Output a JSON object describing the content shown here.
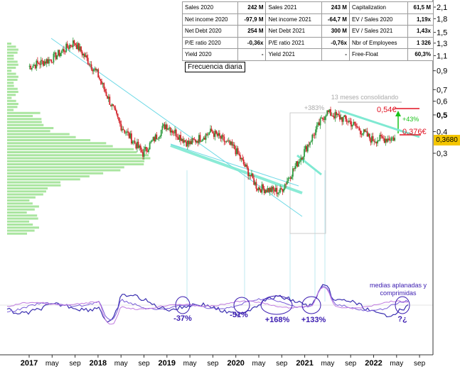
{
  "colors": {
    "up": "#2f9b3f",
    "down": "#d2232a",
    "trendline": "#6fd9e6",
    "channel": "#7fe9d2",
    "volume_profile": "#9be08f",
    "oscillator": "#3a2fb0",
    "annotation_red": "#e01020",
    "annotation_green": "#1ac21a",
    "annotation_gray": "#aaaaaa",
    "annotation_purple": "#3a1bb0",
    "price_box": "#f5c600"
  },
  "table": {
    "rows": [
      [
        {
          "label": "Sales 2020",
          "value": "242 M"
        },
        {
          "label": "Sales 2021",
          "value": "243 M"
        },
        {
          "label": "Capitalization",
          "value": "61,5 M"
        }
      ],
      [
        {
          "label": "Net income 2020",
          "value": "-97,9 M"
        },
        {
          "label": "Net income 2021",
          "value": "-64,7 M"
        },
        {
          "label": "EV / Sales 2020",
          "value": "1,19x"
        }
      ],
      [
        {
          "label": "Net Debt 2020",
          "value": "254 M"
        },
        {
          "label": "Net Debt 2021",
          "value": "300 M"
        },
        {
          "label": "EV / Sales 2021",
          "value": "1,43x"
        }
      ],
      [
        {
          "label": "P/E ratio 2020",
          "value": "-0,36x"
        },
        {
          "label": "P/E ratio 2021",
          "value": "-0,76x"
        },
        {
          "label": "Nbr of Employees",
          "value": "1 326"
        }
      ],
      [
        {
          "label": "Yield 2020",
          "value": "-"
        },
        {
          "label": "Yield 2021",
          "value": "-"
        },
        {
          "label": "Free-Float",
          "value": "60,3%"
        }
      ]
    ]
  },
  "frequency_label": "Frecuencia diaria",
  "last_price_label": "0,3680",
  "chart_data": {
    "type": "candlestick",
    "scale": "log",
    "x": [
      "2017-01",
      "2017-05",
      "2017-09",
      "2018-01",
      "2018-05",
      "2018-09",
      "2019-01",
      "2019-05",
      "2019-09",
      "2020-01",
      "2020-05",
      "2020-09",
      "2021-01",
      "2021-05",
      "2021-09",
      "2022-01",
      "2022-05"
    ],
    "close": [
      0.95,
      1.05,
      1.32,
      0.87,
      0.44,
      0.3,
      0.44,
      0.34,
      0.4,
      0.32,
      0.19,
      0.18,
      0.3,
      0.52,
      0.46,
      0.36,
      0.368
    ],
    "x_tick_labels": [
      "2017",
      "may",
      "sep",
      "2018",
      "may",
      "sep",
      "2019",
      "may",
      "sep",
      "2020",
      "may",
      "sep",
      "2021",
      "may",
      "sep",
      "2022",
      "may",
      "sep"
    ],
    "y_tick_labels": [
      {
        "value": 2.1,
        "label": "2,1"
      },
      {
        "value": 1.8,
        "label": "1,8"
      },
      {
        "value": 1.5,
        "label": "1,5"
      },
      {
        "value": 1.3,
        "label": "1,3"
      },
      {
        "value": 1.1,
        "label": "1,1"
      },
      {
        "value": 0.9,
        "label": "0,9"
      },
      {
        "value": 0.7,
        "label": "0,7"
      },
      {
        "value": 0.6,
        "label": "0,6"
      },
      {
        "value": 0.5,
        "label": "0,5"
      },
      {
        "value": 0.4,
        "label": "0,4"
      },
      {
        "value": 0.3,
        "label": "0,3"
      }
    ],
    "last_price": 0.368,
    "annotations": [
      {
        "text": "13 meses consolidando"
      },
      {
        "text": "+383%"
      },
      {
        "text": "0,54€"
      },
      {
        "text": "+43%"
      },
      {
        "text": "0,376€"
      },
      {
        "text": "medias aplanadas y comprimidas"
      },
      {
        "text": "-37%"
      },
      {
        "text": "-51%"
      },
      {
        "text": "+168%"
      },
      {
        "text": "+133%"
      },
      {
        "text": "?¿"
      }
    ]
  }
}
